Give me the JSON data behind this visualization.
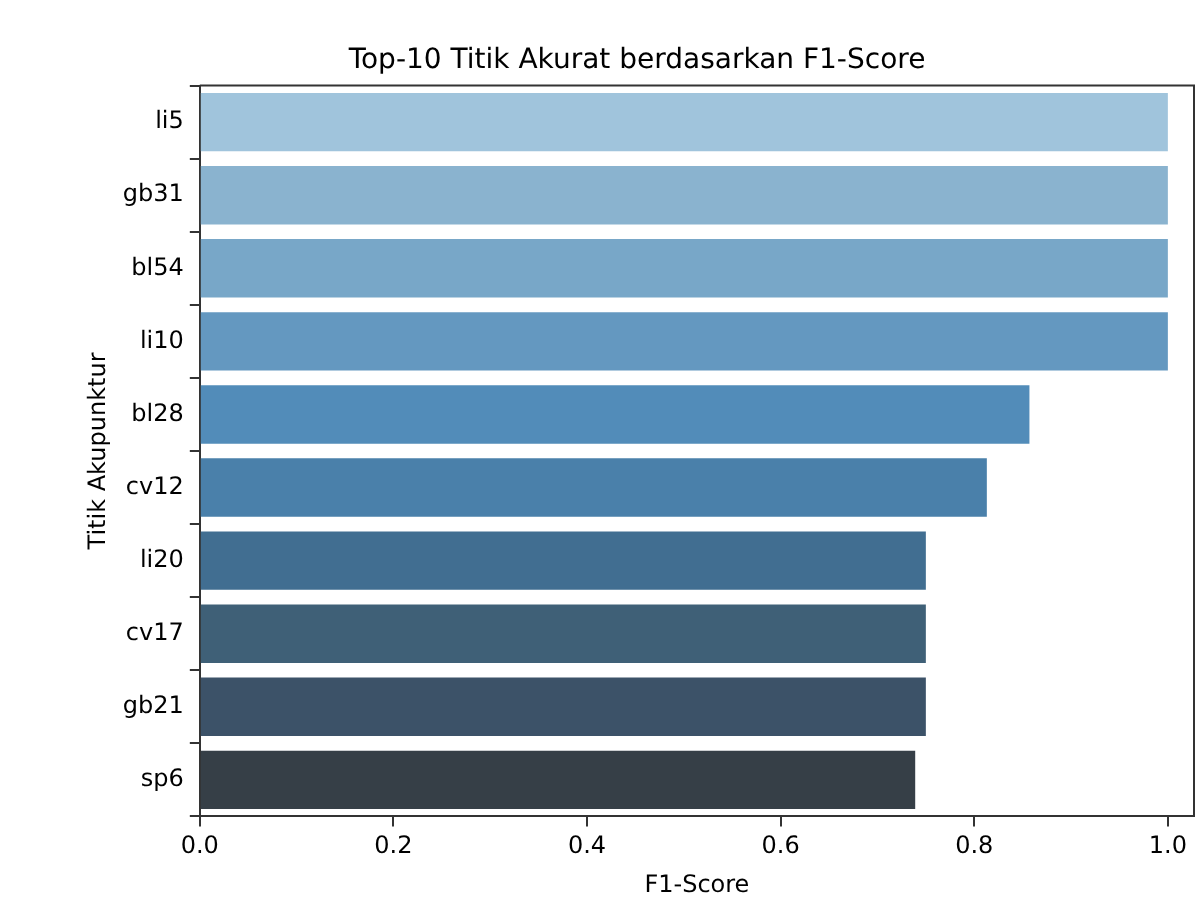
{
  "chart_data": {
    "type": "bar",
    "orientation": "horizontal",
    "title": "Top-10 Titik Akurat berdasarkan F1-Score",
    "xlabel": "F1-Score",
    "ylabel": "Titik Akupunktur",
    "categories": [
      "li5",
      "gb31",
      "bl54",
      "li10",
      "bl28",
      "cv12",
      "li20",
      "cv17",
      "gb21",
      "sp6"
    ],
    "values": [
      1.0,
      1.0,
      1.0,
      1.0,
      0.857,
      0.813,
      0.75,
      0.75,
      0.75,
      0.739
    ],
    "colors": [
      "#a0c4dc",
      "#8ab3cf",
      "#78a7c8",
      "#6498c0",
      "#528cb9",
      "#4a80aa",
      "#416e91",
      "#3f6077",
      "#3c5268",
      "#363f47"
    ],
    "xlim": [
      0,
      1.027
    ],
    "xticks": [
      {
        "value": 0,
        "label": "0.0"
      },
      {
        "value": 0.2,
        "label": "0.2"
      },
      {
        "value": 0.4,
        "label": "0.4"
      },
      {
        "value": 0.6,
        "label": "0.6"
      },
      {
        "value": 0.8,
        "label": "0.8"
      },
      {
        "value": 1.0,
        "label": "1.0"
      }
    ],
    "grid": false,
    "legend": false
  }
}
